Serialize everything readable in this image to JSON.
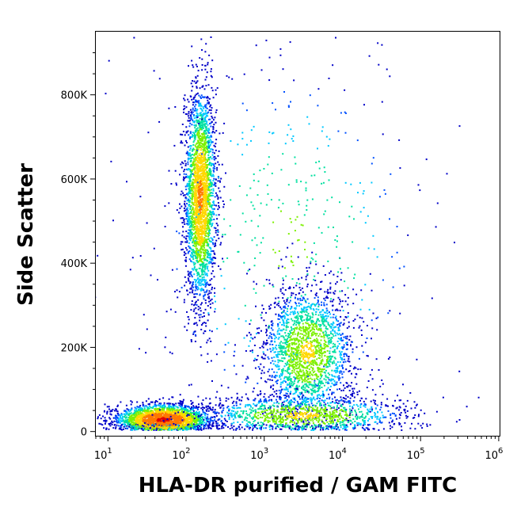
{
  "chart_data": {
    "type": "scatter",
    "title": "",
    "xlabel": "HLA-DR purified / GAM FITC",
    "ylabel": "Side Scatter",
    "x_scale": "log",
    "xlim": [
      7,
      1050000
    ],
    "ylim": [
      -10000,
      950000
    ],
    "x_ticks": [
      {
        "value": 10,
        "base": "10",
        "exp": "1"
      },
      {
        "value": 100,
        "base": "10",
        "exp": "2"
      },
      {
        "value": 1000,
        "base": "10",
        "exp": "3"
      },
      {
        "value": 10000,
        "base": "10",
        "exp": "4"
      },
      {
        "value": 100000,
        "base": "10",
        "exp": "5"
      },
      {
        "value": 1000000,
        "base": "10",
        "exp": "6"
      }
    ],
    "y_ticks": [
      {
        "value": 0,
        "label": "0"
      },
      {
        "value": 200000,
        "label": "200K"
      },
      {
        "value": 400000,
        "label": "400K"
      },
      {
        "value": 600000,
        "label": "600K"
      },
      {
        "value": 800000,
        "label": "800K"
      }
    ],
    "color_scale": [
      "#0000c8",
      "#0050ff",
      "#00c8ff",
      "#00e0a0",
      "#7cf000",
      "#ffd800",
      "#ff7800",
      "#e00000"
    ],
    "populations": [
      {
        "name_visible": false,
        "x_center": 150,
        "x_spread_log": 0.1,
        "y_center": 560000,
        "y_spread": 130000,
        "count": 2600,
        "density": "high"
      },
      {
        "name_visible": false,
        "x_center": 50,
        "x_spread_log": 0.3,
        "y_center": 30000,
        "y_spread": 18000,
        "count": 2400,
        "density": "very-high"
      },
      {
        "name_visible": false,
        "x_center": 3500,
        "x_spread_log": 0.3,
        "y_center": 190000,
        "y_spread": 80000,
        "count": 2000,
        "density": "medium"
      },
      {
        "name_visible": false,
        "x_center": 3000,
        "x_spread_log": 0.7,
        "y_center": 40000,
        "y_spread": 25000,
        "count": 1200,
        "density": "medium"
      },
      {
        "name_visible": false,
        "x_center": 2000,
        "x_spread_log": 1.0,
        "y_center": 450000,
        "y_spread": 250000,
        "count": 500,
        "density": "low"
      }
    ]
  }
}
